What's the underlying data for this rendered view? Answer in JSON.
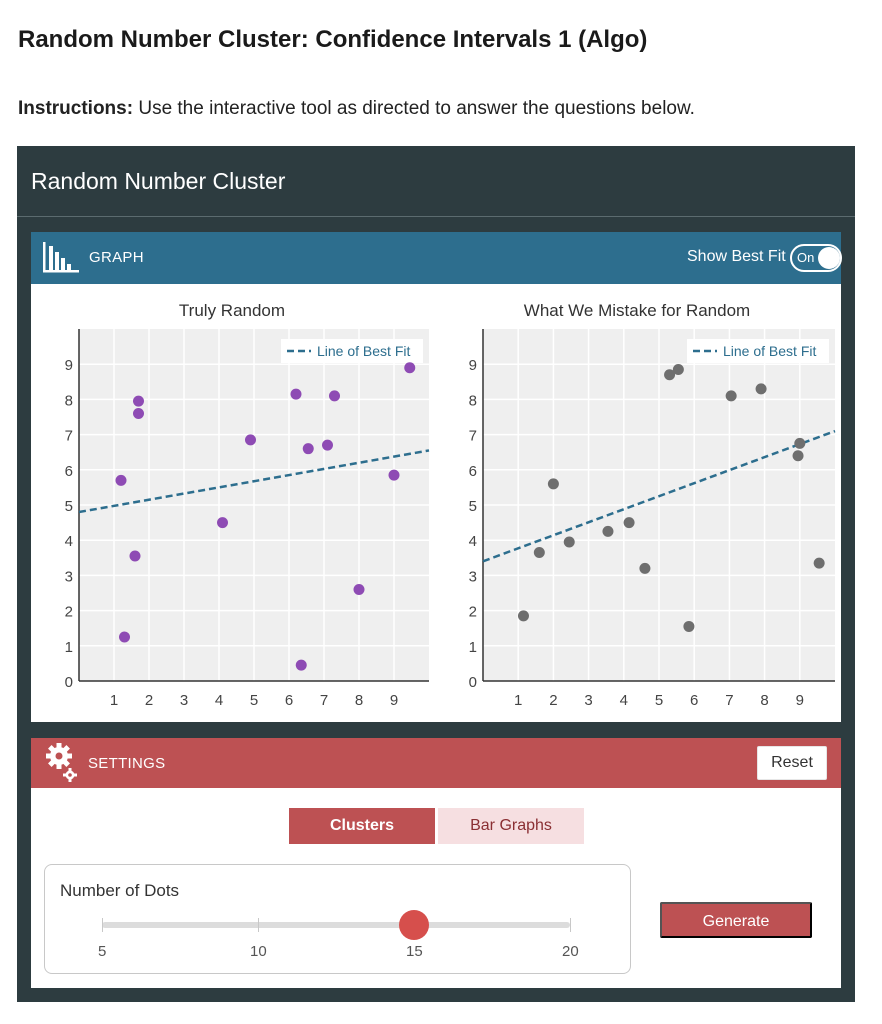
{
  "page": {
    "title": "Random Number Cluster: Confidence Intervals 1 (Algo)",
    "instructions_bold": "Instructions:",
    "instructions_text": " Use the interactive tool as directed to answer the questions below."
  },
  "widget": {
    "title": "Random Number Cluster",
    "graph_header": {
      "label": "GRAPH",
      "icon": "bar-chart-icon",
      "best_fit_label": "Show Best Fit",
      "best_fit_toggle": "On"
    },
    "settings_header": {
      "label": "SETTINGS",
      "icon": "gear-icon",
      "reset_label": "Reset"
    },
    "tabs": [
      {
        "label": "Clusters",
        "active": true
      },
      {
        "label": "Bar Graphs",
        "active": false
      }
    ],
    "dots": {
      "label": "Number of Dots",
      "min": 5,
      "max": 20,
      "value": 15,
      "tick_labels": [
        "5",
        "10",
        "15",
        "20"
      ]
    },
    "generate_label": "Generate",
    "colors": {
      "dark_bg": "#2d3c40",
      "graph_header": "#2d6e8e",
      "settings_header": "#bd5153",
      "purple_dots": "#8e4bb4",
      "gray_dots": "#6e6e6e",
      "best_fit_line": "#2d6e8e",
      "slider_thumb": "#d64f4c"
    }
  },
  "chart_data": [
    {
      "type": "scatter",
      "title": "Truly Random",
      "legend": "Line of Best Fit",
      "legend_position": "top-right",
      "grid": true,
      "xlim": [
        0,
        10
      ],
      "ylim": [
        0,
        10
      ],
      "x_ticks": [
        "1",
        "2",
        "3",
        "4",
        "5",
        "6",
        "7",
        "8",
        "9"
      ],
      "y_ticks": [
        "0",
        "1",
        "2",
        "3",
        "4",
        "5",
        "6",
        "7",
        "8",
        "9"
      ],
      "points": [
        [
          1.2,
          5.7
        ],
        [
          1.3,
          1.25
        ],
        [
          1.6,
          3.55
        ],
        [
          1.7,
          7.95
        ],
        [
          1.7,
          7.6
        ],
        [
          4.1,
          4.5
        ],
        [
          4.9,
          6.85
        ],
        [
          6.2,
          8.15
        ],
        [
          6.35,
          0.45
        ],
        [
          6.55,
          6.6
        ],
        [
          7.1,
          6.7
        ],
        [
          7.3,
          8.1
        ],
        [
          8.0,
          2.6
        ],
        [
          9.0,
          5.85
        ],
        [
          9.45,
          8.9
        ]
      ],
      "best_fit": {
        "y_at_xmin": 4.8,
        "y_at_xmax": 6.55
      }
    },
    {
      "type": "scatter",
      "title": "What We Mistake for Random",
      "legend": "Line of Best Fit",
      "legend_position": "top-right",
      "grid": true,
      "xlim": [
        0,
        10
      ],
      "ylim": [
        0,
        10
      ],
      "x_ticks": [
        "1",
        "2",
        "3",
        "4",
        "5",
        "6",
        "7",
        "8",
        "9"
      ],
      "y_ticks": [
        "0",
        "1",
        "2",
        "3",
        "4",
        "5",
        "6",
        "7",
        "8",
        "9"
      ],
      "points": [
        [
          1.15,
          1.85
        ],
        [
          1.6,
          3.65
        ],
        [
          2.0,
          5.6
        ],
        [
          2.45,
          3.95
        ],
        [
          3.55,
          4.25
        ],
        [
          4.15,
          4.5
        ],
        [
          4.6,
          3.2
        ],
        [
          5.3,
          8.7
        ],
        [
          5.55,
          8.85
        ],
        [
          5.85,
          1.55
        ],
        [
          7.05,
          8.1
        ],
        [
          7.9,
          8.3
        ],
        [
          9.0,
          6.75
        ],
        [
          8.95,
          6.4
        ],
        [
          9.55,
          3.35
        ]
      ],
      "best_fit": {
        "y_at_xmin": 3.4,
        "y_at_xmax": 7.1
      }
    }
  ]
}
